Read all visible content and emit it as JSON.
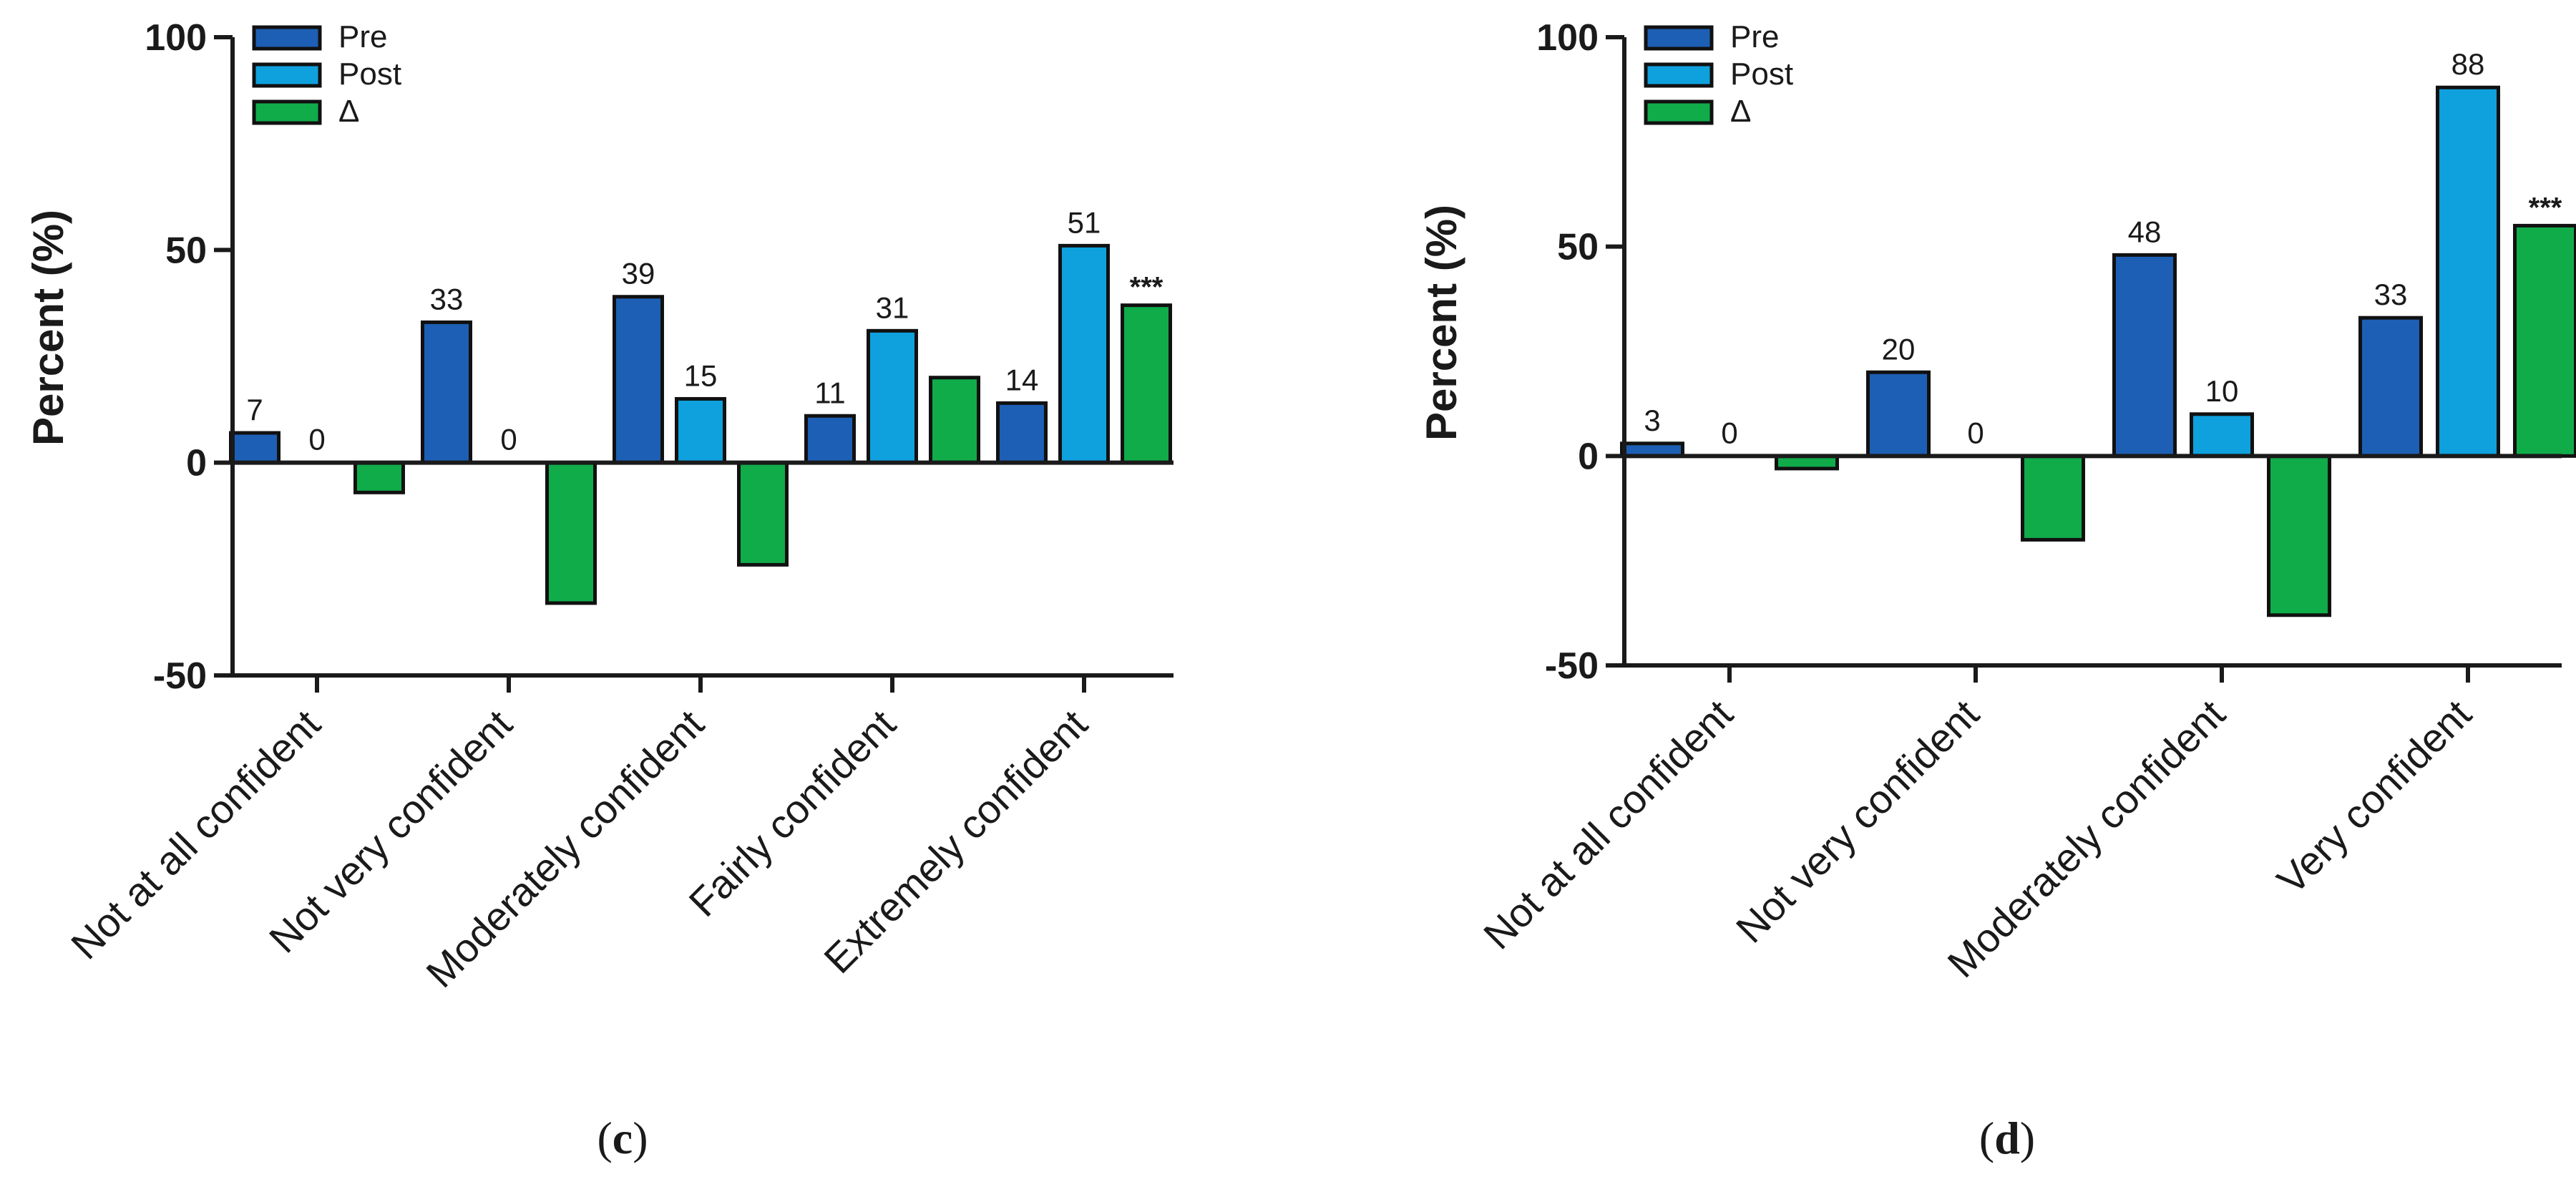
{
  "colors": {
    "Pre": "#1d5fb4",
    "Post": "#0ea1dd",
    "Delta": "#10ac4a"
  },
  "chart_data": [
    {
      "id": "c",
      "type": "bar",
      "panel_label": {
        "open": "(",
        "letter": "c",
        "close": ")"
      },
      "title": "",
      "xlabel": "",
      "ylabel": "Percent (%)",
      "ylim": [
        -50,
        100
      ],
      "yticks": [
        -50,
        0,
        50,
        100
      ],
      "legend_position": "top-left",
      "categories": [
        "Not at all confident",
        "Not very confident",
        "Moderately confident",
        "Fairly confident",
        "Extremely confident"
      ],
      "series": [
        {
          "name": "Pre",
          "values": [
            7,
            33,
            39,
            11,
            14
          ],
          "labels": [
            "7",
            "33",
            "39",
            "11",
            "14"
          ]
        },
        {
          "name": "Post",
          "values": [
            0,
            0,
            15,
            31,
            51
          ],
          "labels": [
            "0",
            "0",
            "15",
            "31",
            "51"
          ]
        },
        {
          "name": "Δ",
          "values": [
            -7,
            -33,
            -24,
            20,
            37
          ],
          "labels": [
            "",
            "",
            "",
            "",
            "***"
          ]
        }
      ]
    },
    {
      "id": "d",
      "type": "bar",
      "panel_label": {
        "open": "(",
        "letter": "d",
        "close": ")"
      },
      "title": "",
      "xlabel": "",
      "ylabel": "Percent (%)",
      "ylim": [
        -50,
        100
      ],
      "yticks": [
        -50,
        0,
        50,
        100
      ],
      "legend_position": "top-left",
      "categories": [
        "Not at all confident",
        "Not very confident",
        "Moderately confident",
        "Very confident"
      ],
      "series": [
        {
          "name": "Pre",
          "values": [
            3,
            20,
            48,
            33
          ],
          "labels": [
            "3",
            "20",
            "48",
            "33"
          ]
        },
        {
          "name": "Post",
          "values": [
            0,
            0,
            10,
            88
          ],
          "labels": [
            "0",
            "0",
            "10",
            "88"
          ]
        },
        {
          "name": "Δ",
          "values": [
            -3,
            -20,
            -38,
            55
          ],
          "labels": [
            "",
            "",
            "",
            "***"
          ]
        }
      ]
    }
  ]
}
